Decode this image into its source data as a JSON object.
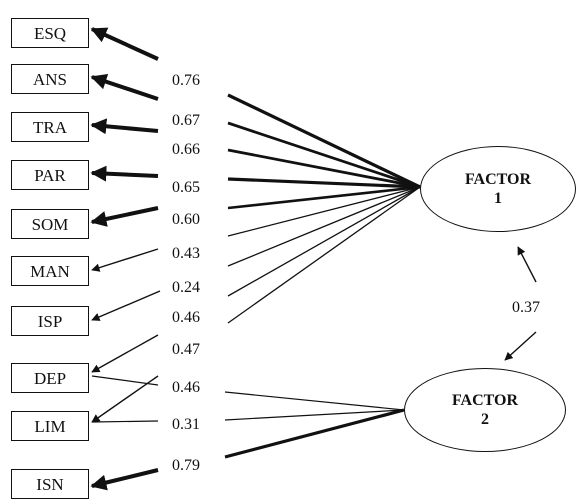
{
  "variables": [
    {
      "id": "ESQ",
      "label": "ESQ"
    },
    {
      "id": "ANS",
      "label": "ANS"
    },
    {
      "id": "TRA",
      "label": "TRA"
    },
    {
      "id": "PAR",
      "label": "PAR"
    },
    {
      "id": "SOM",
      "label": "SOM"
    },
    {
      "id": "MAN",
      "label": "MAN"
    },
    {
      "id": "ISP",
      "label": "ISP"
    },
    {
      "id": "DEP",
      "label": "DEP"
    },
    {
      "id": "LIM",
      "label": "LIM"
    },
    {
      "id": "ISN",
      "label": "ISN"
    }
  ],
  "loadings": [
    "0.76",
    "0.67",
    "0.66",
    "0.65",
    "0.60",
    "0.43",
    "0.24",
    "0.46",
    "0.47",
    "0.46",
    "0.31",
    "0.79"
  ],
  "factors": [
    {
      "line1": "FACTOR",
      "line2": "1"
    },
    {
      "line1": "FACTOR",
      "line2": "2"
    }
  ],
  "correlation": "0.37",
  "clipped_text": "",
  "colors": {
    "ink": "#111111"
  }
}
